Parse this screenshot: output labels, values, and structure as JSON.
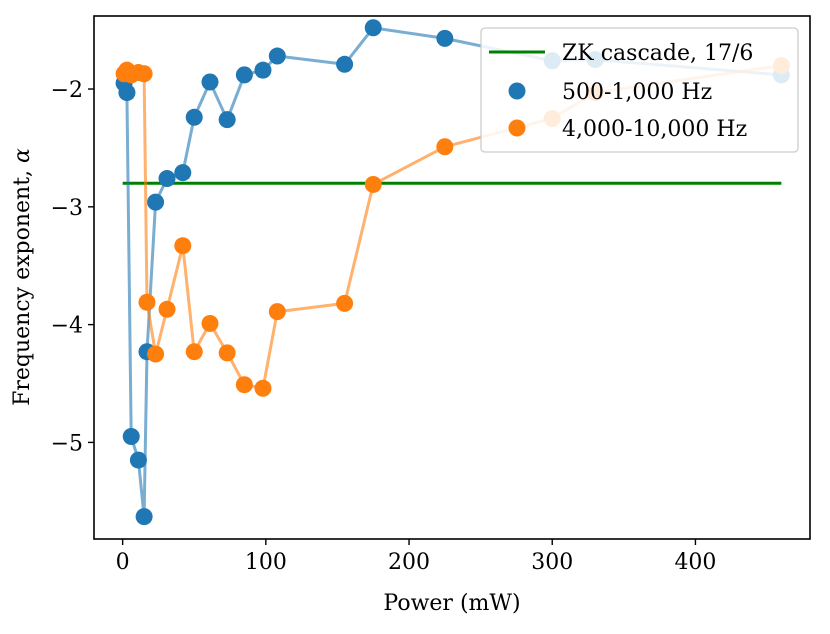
{
  "chart_data": {
    "type": "line",
    "title": "",
    "xlabel": "Power (mW)",
    "ylabel_prefix": "Frequency exponent, ",
    "ylabel_symbol": "α",
    "xlim": [
      -20,
      480
    ],
    "ylim": [
      -1.38,
      -5.82
    ],
    "xticks": [
      0,
      100,
      200,
      300,
      400
    ],
    "xtick_labels": [
      "0",
      "100",
      "200",
      "300",
      "400"
    ],
    "yticks": [
      -2,
      -3,
      -4,
      -5
    ],
    "ytick_labels": [
      "−2",
      "−3",
      "−4",
      "−5"
    ],
    "grid": false,
    "legend_position": "top-right",
    "reference_line": {
      "name": "ZK cascade, 17/6",
      "y": -2.8,
      "x_range": [
        0,
        460
      ],
      "color": "#008000"
    },
    "series": [
      {
        "name": "500-1,000 Hz",
        "color": "#1f77b4",
        "x": [
          1,
          3,
          6,
          11,
          15,
          17,
          23,
          31,
          42,
          50,
          61,
          73,
          85,
          98,
          108,
          155,
          175,
          225,
          300,
          330,
          460
        ],
        "y": [
          -1.95,
          -2.03,
          -4.95,
          -5.15,
          -5.63,
          -4.23,
          -2.96,
          -2.76,
          -2.71,
          -2.24,
          -1.94,
          -2.26,
          -1.88,
          -1.84,
          -1.72,
          -1.79,
          -1.48,
          -1.57,
          -1.76,
          -1.75,
          -1.88
        ]
      },
      {
        "name": "4,000-10,000 Hz",
        "color": "#ff7f0e",
        "x": [
          1,
          3,
          6,
          11,
          15,
          17,
          23,
          31,
          42,
          50,
          61,
          73,
          85,
          98,
          108,
          155,
          175,
          225,
          300,
          330,
          460
        ],
        "y": [
          -1.87,
          -1.84,
          -1.88,
          -1.86,
          -1.87,
          -3.81,
          -4.25,
          -3.87,
          -3.33,
          -4.23,
          -3.99,
          -4.24,
          -4.51,
          -4.54,
          -3.89,
          -3.82,
          -2.81,
          -2.49,
          -2.25,
          -2.03,
          -1.8
        ]
      }
    ]
  }
}
